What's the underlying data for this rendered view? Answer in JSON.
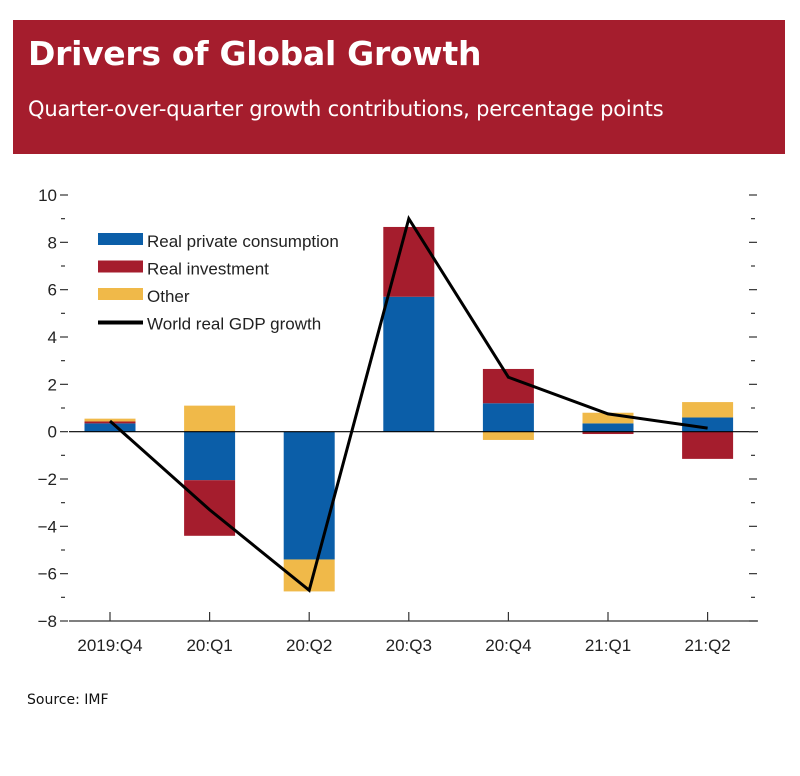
{
  "header": {
    "title": "Drivers of Global Growth",
    "subtitle": "Quarter-over-quarter growth contributions, percentage points"
  },
  "footer": {
    "source": "Source: IMF"
  },
  "colors": {
    "banner": "#a51d2d",
    "consumption": "#0b5ea8",
    "investment": "#a51d2d",
    "other": "#f0b949",
    "line": "#000000"
  },
  "chart_data": {
    "type": "bar",
    "stacked": true,
    "title": "Drivers of Global Growth",
    "subtitle": "Quarter-over-quarter growth contributions, percentage points",
    "xlabel": "",
    "ylabel": "",
    "ylim": [
      -8,
      10
    ],
    "yticks": [
      -8,
      -6,
      -4,
      -2,
      0,
      2,
      4,
      6,
      8,
      10
    ],
    "ytick_labels": [
      "−8",
      "−6",
      "−4",
      "−2",
      "0",
      "2",
      "4",
      "6",
      "8",
      "10"
    ],
    "categories": [
      "2019:Q4",
      "20:Q1",
      "20:Q2",
      "20:Q3",
      "20:Q4",
      "21:Q1",
      "21:Q2"
    ],
    "series": [
      {
        "name": "Real private consumption",
        "kind": "bar",
        "color": "#0b5ea8",
        "values": [
          0.35,
          -2.05,
          -5.4,
          5.7,
          1.2,
          0.35,
          0.6
        ]
      },
      {
        "name": "Real investment",
        "kind": "bar",
        "color": "#a51d2d",
        "values": [
          0.08,
          -2.35,
          0.0,
          2.95,
          1.45,
          -0.1,
          -1.15
        ]
      },
      {
        "name": "Other",
        "kind": "bar",
        "color": "#f0b949",
        "values": [
          0.12,
          1.1,
          -1.35,
          0.0,
          -0.35,
          0.45,
          0.65
        ]
      },
      {
        "name": "World real GDP growth",
        "kind": "line",
        "color": "#000000",
        "values": [
          0.45,
          -3.3,
          -6.7,
          9.0,
          2.3,
          0.75,
          0.15
        ]
      }
    ],
    "legend": {
      "placement": "top-left"
    },
    "grid": false
  }
}
